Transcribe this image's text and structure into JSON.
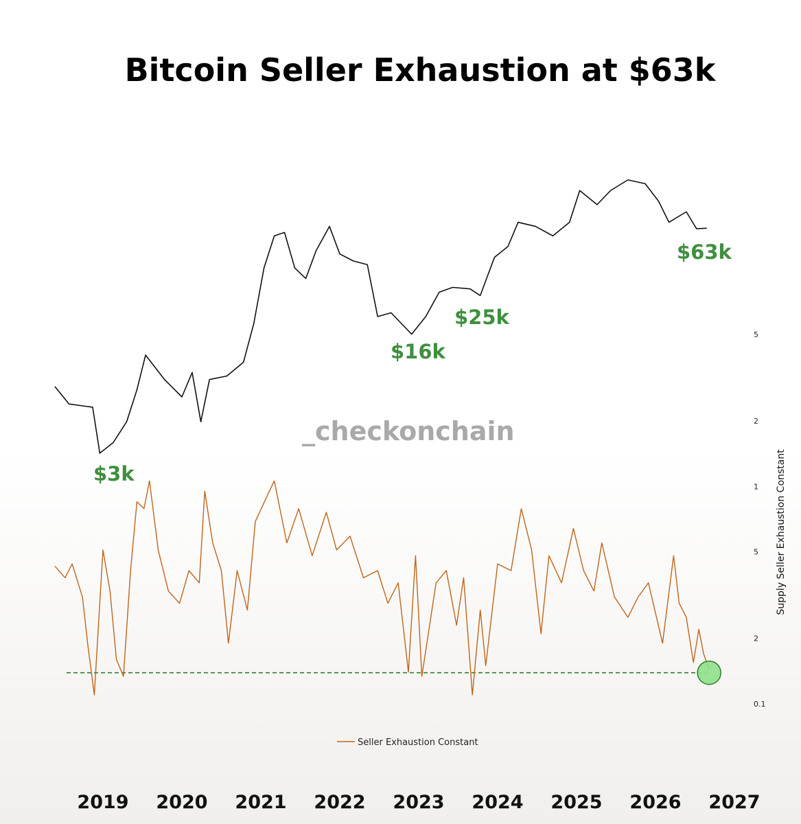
{
  "chart_data": {
    "type": "line",
    "title": "Bitcoin Seller Exhaustion at $63k",
    "watermark": "_checkonchain",
    "y_axis_label": "Supply Seller Exhaustion Constant",
    "annotations": [
      "$3k",
      "$16k",
      "$25k",
      "$63k"
    ],
    "log_scale": true,
    "xlim": [
      2018.3,
      2027.2
    ],
    "xticks": [
      2019,
      2020,
      2021,
      2022,
      2023,
      2024,
      2025,
      2026,
      2027
    ],
    "ylim": [
      0.1,
      5
    ],
    "yticks": [
      5,
      2,
      1,
      {
        "value": 0.5,
        "label": "5"
      },
      {
        "value": 0.2,
        "label": "2"
      },
      0.1
    ],
    "threshold": 0.139,
    "threshold_color": "#2e7d32",
    "series": [
      {
        "color": "#111111",
        "x": [
          2018.39,
          2018.57,
          2018.87,
          2018.96,
          2019.13,
          2019.3,
          2019.43,
          2019.54,
          2019.78,
          2020.0,
          2020.13,
          2020.24,
          2020.35,
          2020.57,
          2020.78,
          2020.91,
          2021.04,
          2021.17,
          2021.3,
          2021.43,
          2021.57,
          2021.7,
          2021.87,
          2022.0,
          2022.17,
          2022.35,
          2022.48,
          2022.65,
          2022.91,
          2023.09,
          2023.26,
          2023.43,
          2023.65,
          2023.78,
          2023.96,
          2024.13,
          2024.26,
          2024.48,
          2024.7,
          2024.91,
          2025.04,
          2025.26,
          2025.43,
          2025.65,
          2025.87,
          2026.04,
          2026.17,
          2026.39,
          2026.52,
          2026.65
        ],
        "values": [
          7650,
          6060,
          5800,
          3140,
          3620,
          4780,
          7330,
          11650,
          8400,
          6660,
          9240,
          4780,
          8400,
          8810,
          10590,
          17700,
          37300,
          57300,
          60000,
          37300,
          32400,
          47000,
          65000,
          45000,
          41000,
          39000,
          19500,
          20500,
          15400,
          19500,
          27000,
          28800,
          28200,
          25800,
          43000,
          49700,
          68700,
          65000,
          57300,
          68700,
          105000,
          87000,
          105000,
          121000,
          115000,
          91000,
          68700,
          79000,
          63000,
          63500
        ]
      },
      {
        "name": "Seller Exhaustion Constant",
        "color": "#c0651a",
        "x": [
          2018.39,
          2018.52,
          2018.61,
          2018.74,
          2018.81,
          2018.89,
          2019.0,
          2019.09,
          2019.17,
          2019.26,
          2019.35,
          2019.43,
          2019.52,
          2019.59,
          2019.7,
          2019.83,
          2019.97,
          2020.09,
          2020.22,
          2020.29,
          2020.39,
          2020.5,
          2020.59,
          2020.7,
          2020.83,
          2020.93,
          2021.09,
          2021.17,
          2021.33,
          2021.48,
          2021.65,
          2021.83,
          2021.96,
          2022.13,
          2022.3,
          2022.48,
          2022.61,
          2022.74,
          2022.87,
          2022.96,
          2023.04,
          2023.22,
          2023.35,
          2023.48,
          2023.57,
          2023.68,
          2023.78,
          2023.85,
          2024.0,
          2024.17,
          2024.3,
          2024.43,
          2024.55,
          2024.65,
          2024.81,
          2024.96,
          2025.09,
          2025.22,
          2025.32,
          2025.48,
          2025.65,
          2025.78,
          2025.91,
          2026.09,
          2026.23,
          2026.3,
          2026.39,
          2026.48,
          2026.55,
          2026.61,
          2026.68
        ],
        "values": [
          0.43,
          0.38,
          0.44,
          0.31,
          0.185,
          0.11,
          0.51,
          0.33,
          0.16,
          0.134,
          0.41,
          0.85,
          0.79,
          1.06,
          0.51,
          0.33,
          0.29,
          0.41,
          0.36,
          0.95,
          0.55,
          0.41,
          0.19,
          0.41,
          0.27,
          0.69,
          0.92,
          1.06,
          0.55,
          0.79,
          0.48,
          0.76,
          0.51,
          0.59,
          0.38,
          0.41,
          0.29,
          0.36,
          0.14,
          0.48,
          0.134,
          0.36,
          0.41,
          0.23,
          0.38,
          0.11,
          0.27,
          0.15,
          0.44,
          0.41,
          0.79,
          0.51,
          0.21,
          0.48,
          0.36,
          0.64,
          0.41,
          0.33,
          0.55,
          0.31,
          0.25,
          0.31,
          0.36,
          0.19,
          0.48,
          0.29,
          0.25,
          0.155,
          0.22,
          0.17,
          0.144
        ]
      }
    ]
  }
}
